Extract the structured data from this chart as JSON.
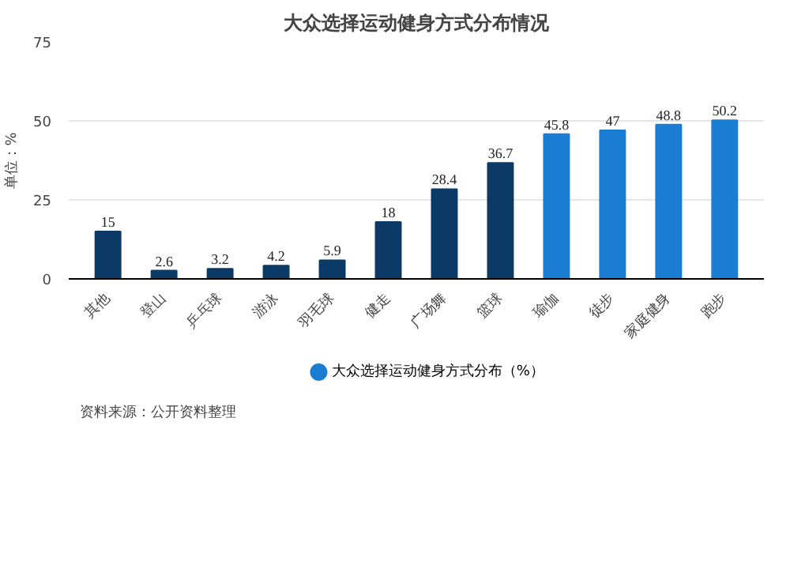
{
  "chart_data": {
    "type": "bar",
    "title": "大众选择运动健身方式分布情况",
    "ylabel": "单位：%",
    "categories": [
      "其他",
      "登山",
      "乒乓球",
      "游泳",
      "羽毛球",
      "健走",
      "广场舞",
      "篮球",
      "瑜伽",
      "徒步",
      "家庭健身",
      "跑步"
    ],
    "series": [
      {
        "name": "大众选择运动健身方式分布（%）",
        "color": "#1a7dd4",
        "colors": [
          "#0b3a66",
          "#0b3a66",
          "#0b3a66",
          "#0b3a66",
          "#0b3a66",
          "#0b3a66",
          "#0b3a66",
          "#0b3a66",
          "#1a7dd4",
          "#1a7dd4",
          "#1a7dd4",
          "#1a7dd4"
        ],
        "values": [
          15,
          2.6,
          3.2,
          4.2,
          5.9,
          18,
          28.4,
          36.7,
          45.8,
          47,
          48.8,
          50.2
        ]
      }
    ],
    "data_labels": true,
    "ylim": [
      0,
      75
    ],
    "yticks": [
      0,
      25,
      50,
      75
    ],
    "grid": "y",
    "legend": "bottom",
    "annotations": [
      "资料来源：公开资料整理"
    ]
  }
}
